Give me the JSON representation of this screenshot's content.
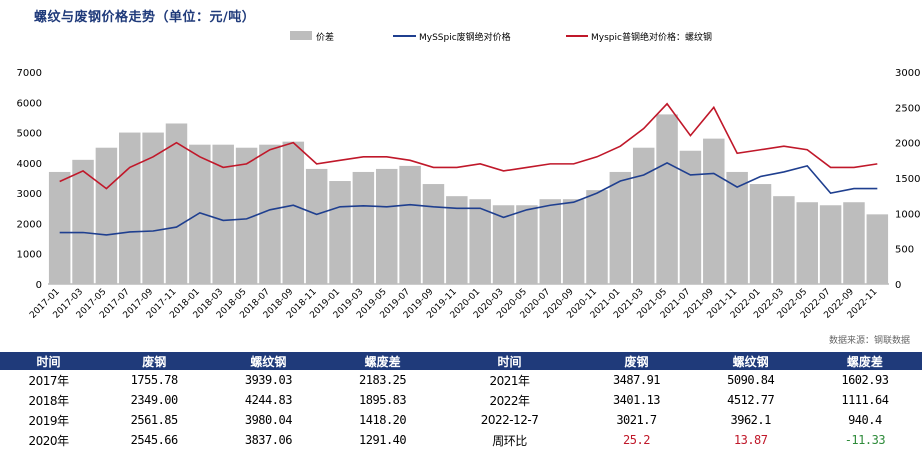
{
  "title": "螺纹与废钢价格走势（单位：元/吨）",
  "source": "数据来源：钢联数据",
  "colors": {
    "spread": "#bdbdbd",
    "scrap": "#1f3f8f",
    "rebar": "#c0182a",
    "header": "#1f3a7a",
    "up": "#c0182a",
    "down": "#2e8b3a"
  },
  "chart_data": {
    "type": "line",
    "x": [
      "2017-01",
      "2017-03",
      "2017-05",
      "2017-07",
      "2017-09",
      "2017-11",
      "2018-01",
      "2018-03",
      "2018-05",
      "2018-07",
      "2018-09",
      "2018-11",
      "2019-01",
      "2019-03",
      "2019-05",
      "2019-07",
      "2019-09",
      "2019-11",
      "2020-01",
      "2020-03",
      "2020-05",
      "2020-07",
      "2020-09",
      "2020-11",
      "2021-01",
      "2021-03",
      "2021-05",
      "2021-07",
      "2021-09",
      "2021-11",
      "2022-01",
      "2022-03",
      "2022-05",
      "2022-07",
      "2022-09",
      "2022-11"
    ],
    "series": [
      {
        "name": "价差",
        "type": "area",
        "axis": "left",
        "values": [
          3700,
          4100,
          4500,
          5000,
          5000,
          5300,
          4600,
          4600,
          4500,
          4600,
          4700,
          3800,
          3400,
          3700,
          3800,
          3900,
          3300,
          2900,
          2800,
          2600,
          2600,
          2800,
          2800,
          3100,
          3700,
          4500,
          5600,
          4400,
          4800,
          3700,
          3300,
          2900,
          2700,
          2600,
          2700,
          2300
        ]
      },
      {
        "name": "MySSpic废钢绝对价格",
        "type": "line",
        "axis": "left",
        "values": [
          1700,
          1700,
          1620,
          1720,
          1750,
          1880,
          2350,
          2100,
          2150,
          2450,
          2600,
          2300,
          2550,
          2580,
          2550,
          2620,
          2550,
          2500,
          2500,
          2200,
          2450,
          2600,
          2700,
          3000,
          3400,
          3600,
          4000,
          3600,
          3650,
          3200,
          3550,
          3700,
          3900,
          3000,
          3150,
          3150
        ]
      },
      {
        "name": "Myspic普钢绝对价格：螺纹钢",
        "type": "line",
        "axis": "right",
        "values": [
          1450,
          1600,
          1350,
          1650,
          1800,
          2000,
          1800,
          1650,
          1700,
          1900,
          2000,
          1700,
          1750,
          1800,
          1800,
          1750,
          1650,
          1650,
          1700,
          1600,
          1650,
          1700,
          1700,
          1800,
          1950,
          2200,
          2550,
          2100,
          2500,
          1850,
          1900,
          1950,
          1900,
          1650,
          1650,
          1700
        ]
      }
    ],
    "y_left": {
      "min": 0,
      "max": 7000,
      "ticks": [
        "0",
        "1000",
        "2000",
        "3000",
        "4000",
        "5000",
        "6000",
        "7000"
      ]
    },
    "y_right": {
      "min": 0,
      "max": 3000,
      "ticks": [
        "0",
        "500",
        "1000",
        "1500",
        "2000",
        "2500",
        "3000"
      ]
    },
    "legend_position": "top"
  },
  "table": {
    "headers": [
      "时间",
      "废钢",
      "螺纹钢",
      "螺废差",
      "时间",
      "废钢",
      "螺纹钢",
      "螺废差"
    ],
    "rows": [
      [
        "2017年",
        "1755.78",
        "3939.03",
        "2183.25",
        "2021年",
        "3487.91",
        "5090.84",
        "1602.93"
      ],
      [
        "2018年",
        "2349.00",
        "4244.83",
        "1895.83",
        "2022年",
        "3401.13",
        "4512.77",
        "1111.64"
      ],
      [
        "2019年",
        "2561.85",
        "3980.04",
        "1418.20",
        "2022-12-7",
        "3021.7",
        "3962.1",
        "940.4"
      ],
      [
        "2020年",
        "2545.66",
        "3837.06",
        "1291.40",
        "周环比",
        "25.2",
        "13.87",
        "-11.33"
      ]
    ]
  }
}
